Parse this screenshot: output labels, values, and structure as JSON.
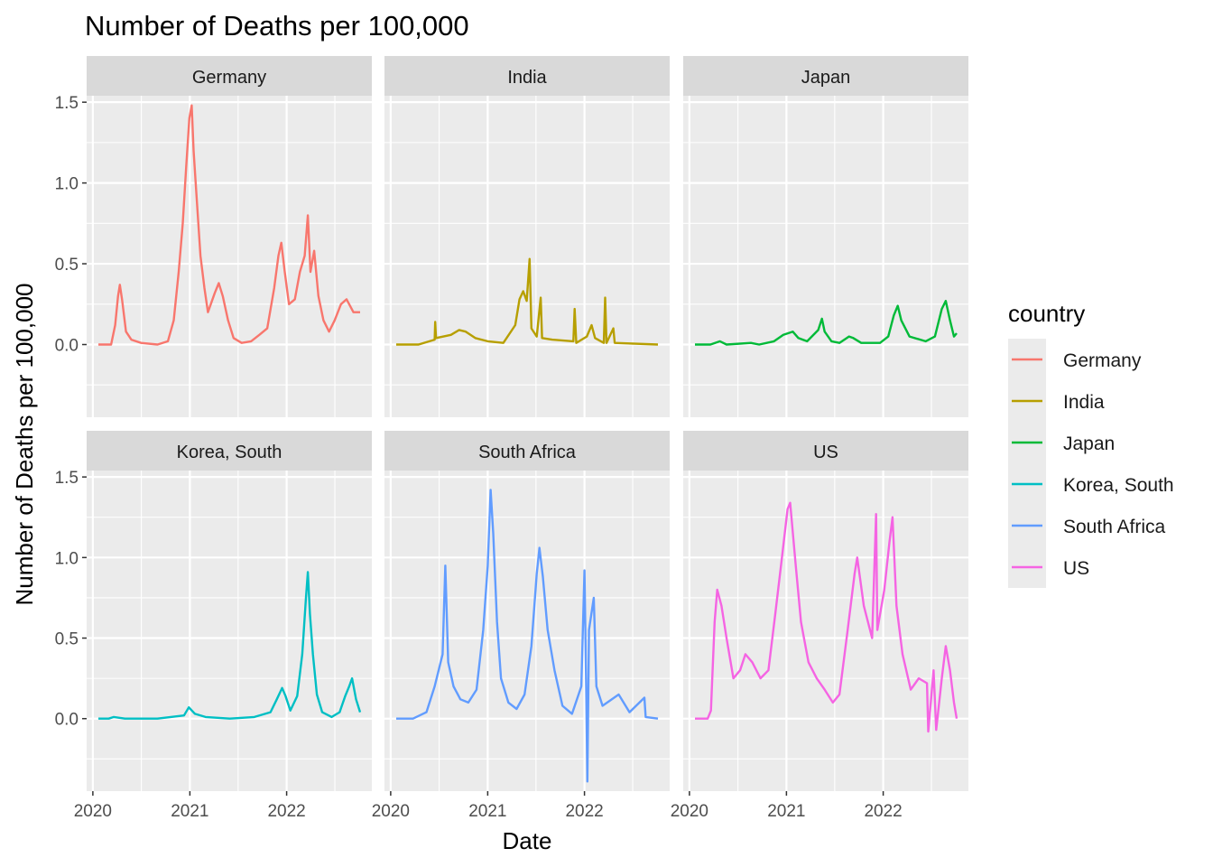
{
  "chart_data": {
    "type": "line",
    "title": "Number of Deaths per 100,000",
    "xlabel": "Date",
    "ylabel": "Number of Deaths per 100,000",
    "x_ticks": [
      "2020",
      "2021",
      "2022"
    ],
    "x_range": [
      "2020-01-22",
      "2022-10-05"
    ],
    "y_ticks": [
      0.0,
      0.5,
      1.0,
      1.5
    ],
    "y_tick_labels": [
      "0.0",
      "0.5",
      "1.0",
      "1.5"
    ],
    "ylim": [
      -0.45,
      1.54
    ],
    "grid": true,
    "facets": "wrap 2 rows x 3 cols, shared axes",
    "legend": {
      "title": "country",
      "placement": "right"
    },
    "series": [
      {
        "name": "Germany",
        "color": "#F8766D",
        "points": [
          [
            "2020-01-22",
            0
          ],
          [
            "2020-03-10",
            0.0
          ],
          [
            "2020-03-25",
            0.12
          ],
          [
            "2020-04-05",
            0.3
          ],
          [
            "2020-04-12",
            0.37
          ],
          [
            "2020-04-20",
            0.28
          ],
          [
            "2020-05-05",
            0.08
          ],
          [
            "2020-05-25",
            0.03
          ],
          [
            "2020-07-01",
            0.01
          ],
          [
            "2020-09-01",
            0.0
          ],
          [
            "2020-10-10",
            0.02
          ],
          [
            "2020-11-01",
            0.15
          ],
          [
            "2020-11-20",
            0.45
          ],
          [
            "2020-12-05",
            0.75
          ],
          [
            "2020-12-18",
            1.1
          ],
          [
            "2020-12-30",
            1.4
          ],
          [
            "2021-01-08",
            1.48
          ],
          [
            "2021-01-15",
            1.2
          ],
          [
            "2021-01-25",
            0.95
          ],
          [
            "2021-02-10",
            0.55
          ],
          [
            "2021-02-25",
            0.35
          ],
          [
            "2021-03-10",
            0.2
          ],
          [
            "2021-04-05",
            0.32
          ],
          [
            "2021-04-20",
            0.38
          ],
          [
            "2021-05-05",
            0.3
          ],
          [
            "2021-05-25",
            0.15
          ],
          [
            "2021-06-15",
            0.04
          ],
          [
            "2021-07-15",
            0.01
          ],
          [
            "2021-08-20",
            0.02
          ],
          [
            "2021-09-20",
            0.06
          ],
          [
            "2021-10-20",
            0.1
          ],
          [
            "2021-11-15",
            0.35
          ],
          [
            "2021-12-01",
            0.55
          ],
          [
            "2021-12-12",
            0.63
          ],
          [
            "2021-12-25",
            0.45
          ],
          [
            "2022-01-10",
            0.25
          ],
          [
            "2022-02-01",
            0.28
          ],
          [
            "2022-02-20",
            0.45
          ],
          [
            "2022-03-10",
            0.55
          ],
          [
            "2022-03-22",
            0.8
          ],
          [
            "2022-04-01",
            0.45
          ],
          [
            "2022-04-15",
            0.58
          ],
          [
            "2022-05-01",
            0.3
          ],
          [
            "2022-05-20",
            0.15
          ],
          [
            "2022-06-10",
            0.08
          ],
          [
            "2022-07-01",
            0.15
          ],
          [
            "2022-07-25",
            0.25
          ],
          [
            "2022-08-15",
            0.28
          ],
          [
            "2022-09-10",
            0.2
          ],
          [
            "2022-10-05",
            0.2
          ]
        ]
      },
      {
        "name": "India",
        "color": "#B79F00",
        "points": [
          [
            "2020-01-22",
            0
          ],
          [
            "2020-04-15",
            0.0
          ],
          [
            "2020-06-15",
            0.03
          ],
          [
            "2020-06-17",
            0.14
          ],
          [
            "2020-06-20",
            0.04
          ],
          [
            "2020-08-15",
            0.06
          ],
          [
            "2020-09-15",
            0.09
          ],
          [
            "2020-10-10",
            0.08
          ],
          [
            "2020-11-15",
            0.04
          ],
          [
            "2021-01-01",
            0.02
          ],
          [
            "2021-03-01",
            0.01
          ],
          [
            "2021-04-15",
            0.12
          ],
          [
            "2021-05-01",
            0.28
          ],
          [
            "2021-05-15",
            0.33
          ],
          [
            "2021-05-28",
            0.27
          ],
          [
            "2021-06-08",
            0.53
          ],
          [
            "2021-06-15",
            0.1
          ],
          [
            "2021-07-05",
            0.05
          ],
          [
            "2021-07-20",
            0.29
          ],
          [
            "2021-07-25",
            0.04
          ],
          [
            "2021-09-01",
            0.03
          ],
          [
            "2021-11-20",
            0.02
          ],
          [
            "2021-11-25",
            0.22
          ],
          [
            "2021-12-01",
            0.01
          ],
          [
            "2022-01-10",
            0.05
          ],
          [
            "2022-01-28",
            0.12
          ],
          [
            "2022-02-10",
            0.04
          ],
          [
            "2022-03-15",
            0.01
          ],
          [
            "2022-03-20",
            0.29
          ],
          [
            "2022-03-25",
            0.01
          ],
          [
            "2022-04-20",
            0.1
          ],
          [
            "2022-04-25",
            0.01
          ],
          [
            "2022-10-05",
            0.0
          ]
        ]
      },
      {
        "name": "Japan",
        "color": "#00BA38",
        "points": [
          [
            "2020-01-22",
            0
          ],
          [
            "2020-03-20",
            0.0
          ],
          [
            "2020-04-25",
            0.02
          ],
          [
            "2020-05-20",
            0.0
          ],
          [
            "2020-08-20",
            0.01
          ],
          [
            "2020-09-20",
            0.0
          ],
          [
            "2020-11-15",
            0.02
          ],
          [
            "2020-12-20",
            0.06
          ],
          [
            "2021-01-25",
            0.08
          ],
          [
            "2021-02-15",
            0.04
          ],
          [
            "2021-03-20",
            0.02
          ],
          [
            "2021-05-01",
            0.09
          ],
          [
            "2021-05-15",
            0.16
          ],
          [
            "2021-05-25",
            0.08
          ],
          [
            "2021-06-20",
            0.02
          ],
          [
            "2021-07-20",
            0.01
          ],
          [
            "2021-08-25",
            0.05
          ],
          [
            "2021-09-10",
            0.04
          ],
          [
            "2021-10-10",
            0.01
          ],
          [
            "2021-12-20",
            0.01
          ],
          [
            "2022-01-20",
            0.05
          ],
          [
            "2022-02-10",
            0.18
          ],
          [
            "2022-02-25",
            0.24
          ],
          [
            "2022-03-10",
            0.15
          ],
          [
            "2022-04-10",
            0.05
          ],
          [
            "2022-06-10",
            0.02
          ],
          [
            "2022-07-15",
            0.05
          ],
          [
            "2022-08-10",
            0.22
          ],
          [
            "2022-08-25",
            0.27
          ],
          [
            "2022-09-10",
            0.15
          ],
          [
            "2022-09-25",
            0.05
          ],
          [
            "2022-10-05",
            0.07
          ]
        ]
      },
      {
        "name": "Korea, South",
        "color": "#00BFC4",
        "points": [
          [
            "2020-01-22",
            0
          ],
          [
            "2020-03-01",
            0.0
          ],
          [
            "2020-03-20",
            0.01
          ],
          [
            "2020-05-01",
            0.0
          ],
          [
            "2020-09-01",
            0.0
          ],
          [
            "2020-12-10",
            0.02
          ],
          [
            "2020-12-28",
            0.07
          ],
          [
            "2021-01-20",
            0.03
          ],
          [
            "2021-03-01",
            0.01
          ],
          [
            "2021-06-01",
            0.0
          ],
          [
            "2021-09-01",
            0.01
          ],
          [
            "2021-11-01",
            0.04
          ],
          [
            "2021-11-25",
            0.12
          ],
          [
            "2021-12-15",
            0.19
          ],
          [
            "2021-12-28",
            0.14
          ],
          [
            "2022-01-15",
            0.05
          ],
          [
            "2022-02-10",
            0.14
          ],
          [
            "2022-03-01",
            0.4
          ],
          [
            "2022-03-15",
            0.75
          ],
          [
            "2022-03-22",
            0.91
          ],
          [
            "2022-03-30",
            0.65
          ],
          [
            "2022-04-10",
            0.4
          ],
          [
            "2022-04-25",
            0.15
          ],
          [
            "2022-05-15",
            0.04
          ],
          [
            "2022-06-20",
            0.01
          ],
          [
            "2022-07-20",
            0.04
          ],
          [
            "2022-08-10",
            0.14
          ],
          [
            "2022-08-25",
            0.2
          ],
          [
            "2022-09-05",
            0.25
          ],
          [
            "2022-09-20",
            0.12
          ],
          [
            "2022-10-05",
            0.04
          ]
        ]
      },
      {
        "name": "South Africa",
        "color": "#619CFF",
        "points": [
          [
            "2020-01-22",
            0
          ],
          [
            "2020-03-25",
            0.0
          ],
          [
            "2020-05-15",
            0.04
          ],
          [
            "2020-06-15",
            0.2
          ],
          [
            "2020-07-15",
            0.4
          ],
          [
            "2020-07-25",
            0.95
          ],
          [
            "2020-08-05",
            0.35
          ],
          [
            "2020-08-25",
            0.2
          ],
          [
            "2020-09-20",
            0.12
          ],
          [
            "2020-10-20",
            0.1
          ],
          [
            "2020-11-20",
            0.18
          ],
          [
            "2020-12-15",
            0.55
          ],
          [
            "2021-01-01",
            0.95
          ],
          [
            "2021-01-12",
            1.42
          ],
          [
            "2021-01-22",
            1.15
          ],
          [
            "2021-02-05",
            0.6
          ],
          [
            "2021-02-20",
            0.25
          ],
          [
            "2021-03-20",
            0.1
          ],
          [
            "2021-04-20",
            0.06
          ],
          [
            "2021-05-20",
            0.15
          ],
          [
            "2021-06-15",
            0.45
          ],
          [
            "2021-07-05",
            0.9
          ],
          [
            "2021-07-15",
            1.06
          ],
          [
            "2021-07-28",
            0.88
          ],
          [
            "2021-08-15",
            0.55
          ],
          [
            "2021-09-10",
            0.3
          ],
          [
            "2021-10-10",
            0.08
          ],
          [
            "2021-11-15",
            0.03
          ],
          [
            "2021-12-20",
            0.2
          ],
          [
            "2022-01-01",
            0.92
          ],
          [
            "2022-01-08",
            0.15
          ],
          [
            "2022-01-12",
            -0.39
          ],
          [
            "2022-01-18",
            0.55
          ],
          [
            "2022-02-05",
            0.75
          ],
          [
            "2022-02-15",
            0.2
          ],
          [
            "2022-03-10",
            0.08
          ],
          [
            "2022-05-10",
            0.15
          ],
          [
            "2022-06-20",
            0.04
          ],
          [
            "2022-08-15",
            0.13
          ],
          [
            "2022-08-20",
            0.01
          ],
          [
            "2022-10-05",
            0.0
          ]
        ]
      },
      {
        "name": "US",
        "color": "#F564E3",
        "points": [
          [
            "2020-01-22",
            0
          ],
          [
            "2020-03-10",
            0.0
          ],
          [
            "2020-03-22",
            0.05
          ],
          [
            "2020-04-05",
            0.6
          ],
          [
            "2020-04-15",
            0.8
          ],
          [
            "2020-05-01",
            0.7
          ],
          [
            "2020-05-20",
            0.5
          ],
          [
            "2020-06-15",
            0.25
          ],
          [
            "2020-07-10",
            0.3
          ],
          [
            "2020-07-30",
            0.4
          ],
          [
            "2020-08-25",
            0.35
          ],
          [
            "2020-09-25",
            0.25
          ],
          [
            "2020-10-25",
            0.3
          ],
          [
            "2020-11-20",
            0.65
          ],
          [
            "2020-12-15",
            1.0
          ],
          [
            "2021-01-05",
            1.3
          ],
          [
            "2021-01-15",
            1.34
          ],
          [
            "2021-02-05",
            0.95
          ],
          [
            "2021-02-25",
            0.6
          ],
          [
            "2021-03-25",
            0.35
          ],
          [
            "2021-04-25",
            0.25
          ],
          [
            "2021-05-25",
            0.18
          ],
          [
            "2021-06-25",
            0.1
          ],
          [
            "2021-07-20",
            0.15
          ],
          [
            "2021-08-20",
            0.55
          ],
          [
            "2021-09-15",
            0.9
          ],
          [
            "2021-09-25",
            1.0
          ],
          [
            "2021-10-20",
            0.7
          ],
          [
            "2021-11-20",
            0.5
          ],
          [
            "2021-12-05",
            1.27
          ],
          [
            "2021-12-10",
            0.55
          ],
          [
            "2022-01-05",
            0.8
          ],
          [
            "2022-01-25",
            1.1
          ],
          [
            "2022-02-05",
            1.25
          ],
          [
            "2022-02-20",
            0.7
          ],
          [
            "2022-03-15",
            0.4
          ],
          [
            "2022-04-15",
            0.18
          ],
          [
            "2022-05-15",
            0.25
          ],
          [
            "2022-06-15",
            0.22
          ],
          [
            "2022-06-20",
            -0.08
          ],
          [
            "2022-07-10",
            0.3
          ],
          [
            "2022-07-20",
            -0.07
          ],
          [
            "2022-08-10",
            0.25
          ],
          [
            "2022-08-25",
            0.45
          ],
          [
            "2022-09-10",
            0.3
          ],
          [
            "2022-09-25",
            0.1
          ],
          [
            "2022-10-05",
            0.0
          ]
        ]
      }
    ]
  }
}
